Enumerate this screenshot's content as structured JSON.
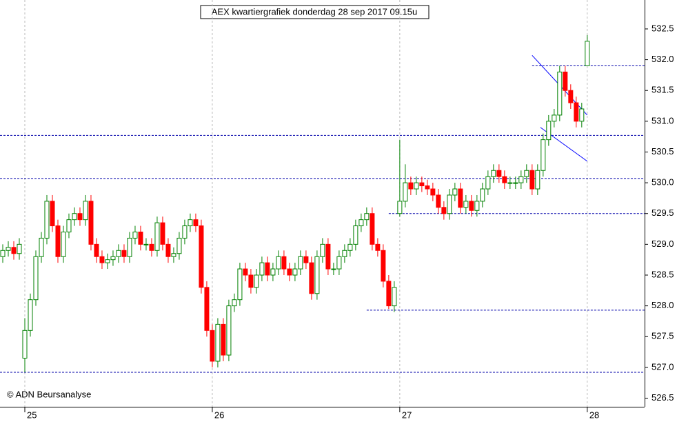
{
  "chart_data": {
    "type": "candlestick",
    "title": "AEX kwartiergrafiek donderdag 28 sep 2017 09.15u",
    "credit": "© ADN Beursanalyse",
    "up_color": "#008000",
    "down_color": "#ff0000",
    "level_color": "#0000aa",
    "trend_color": "#0000ff",
    "open": [
      528.8,
      528.9,
      528.95,
      528.85,
      527.15,
      527.6,
      528.1,
      528.8,
      529.1,
      529.7,
      529.3,
      528.8,
      529.2,
      529.4,
      529.5,
      529.4,
      529.7,
      529.0,
      528.8,
      528.7,
      528.75,
      528.8,
      528.9,
      528.8,
      529.1,
      529.2,
      529.0,
      529.0,
      528.9,
      529.35,
      529.0,
      528.8,
      528.85,
      529.1,
      529.3,
      529.4,
      529.3,
      528.3,
      527.6,
      527.1,
      527.7,
      527.2,
      528.0,
      528.1,
      528.6,
      528.5,
      528.3,
      528.5,
      528.7,
      528.5,
      528.6,
      528.8,
      528.6,
      528.5,
      528.6,
      528.8,
      528.7,
      528.2,
      528.8,
      529.0,
      528.6,
      528.6,
      528.8,
      528.9,
      529.0,
      529.3,
      529.4,
      529.5,
      529.0,
      528.9,
      528.4,
      528.0,
      529.5,
      529.7,
      530.0,
      529.9,
      530.0,
      529.95,
      529.9,
      529.8,
      529.6,
      529.5,
      529.8,
      529.9,
      529.6,
      529.7,
      529.55,
      529.7,
      529.9,
      530.1,
      530.2,
      530.1,
      530.0,
      530.0,
      530.0,
      530.1,
      530.2,
      529.9,
      530.2,
      530.7,
      531.0,
      531.1,
      531.8,
      531.5,
      531.3,
      531.0,
      531.9
    ],
    "high": [
      529.0,
      529.05,
      529.05,
      529.1,
      527.8,
      528.2,
      528.9,
      529.2,
      529.8,
      529.8,
      529.4,
      529.3,
      529.5,
      529.6,
      529.6,
      529.8,
      529.8,
      529.1,
      528.9,
      528.85,
      528.9,
      529.0,
      529.0,
      529.2,
      529.3,
      529.3,
      529.1,
      529.1,
      529.45,
      529.45,
      529.1,
      528.95,
      529.2,
      529.4,
      529.5,
      529.5,
      529.4,
      528.4,
      527.7,
      527.8,
      527.8,
      528.1,
      528.2,
      528.7,
      528.7,
      528.6,
      528.6,
      528.8,
      528.8,
      528.7,
      528.9,
      528.9,
      528.7,
      528.7,
      528.9,
      528.9,
      528.8,
      528.9,
      529.1,
      529.1,
      528.7,
      528.9,
      529.0,
      529.1,
      529.4,
      529.5,
      529.6,
      529.6,
      529.1,
      529.0,
      528.5,
      528.4,
      530.7,
      530.3,
      530.1,
      530.1,
      530.1,
      530.05,
      530.0,
      529.9,
      529.7,
      529.9,
      530.0,
      530.0,
      529.8,
      529.8,
      529.8,
      530.0,
      530.2,
      530.3,
      530.3,
      530.2,
      530.1,
      530.1,
      530.2,
      530.3,
      530.3,
      530.3,
      530.8,
      531.1,
      531.2,
      531.9,
      531.9,
      531.6,
      531.4,
      531.3,
      532.4
    ],
    "low": [
      528.7,
      528.8,
      528.75,
      528.75,
      526.92,
      527.5,
      528.0,
      528.7,
      529.0,
      529.2,
      528.7,
      528.7,
      529.1,
      529.3,
      529.3,
      529.3,
      528.9,
      528.7,
      528.6,
      528.6,
      528.65,
      528.7,
      528.7,
      528.7,
      529.0,
      528.9,
      528.9,
      528.8,
      528.8,
      528.9,
      528.7,
      528.7,
      528.75,
      529.0,
      529.2,
      529.2,
      528.2,
      527.5,
      527.0,
      527.0,
      527.1,
      527.1,
      527.9,
      528.0,
      528.4,
      528.2,
      528.2,
      528.4,
      528.4,
      528.4,
      528.5,
      528.5,
      528.4,
      528.4,
      528.5,
      528.6,
      528.1,
      528.1,
      528.7,
      528.5,
      528.5,
      528.5,
      528.7,
      528.8,
      528.9,
      529.2,
      529.3,
      528.9,
      528.8,
      528.3,
      527.95,
      527.9,
      529.45,
      529.6,
      529.8,
      529.8,
      529.85,
      529.8,
      529.7,
      529.5,
      529.4,
      529.4,
      529.7,
      529.5,
      529.5,
      529.45,
      529.45,
      529.6,
      529.8,
      530.0,
      530.0,
      529.9,
      529.9,
      529.9,
      529.9,
      530.0,
      529.8,
      529.8,
      530.1,
      530.6,
      530.9,
      531.0,
      531.4,
      531.2,
      530.9,
      530.9,
      531.9
    ],
    "close": [
      528.9,
      528.95,
      528.85,
      529.0,
      527.6,
      528.1,
      528.8,
      529.1,
      529.7,
      529.3,
      528.8,
      529.2,
      529.4,
      529.5,
      529.4,
      529.7,
      529.0,
      528.8,
      528.7,
      528.75,
      528.8,
      528.9,
      528.8,
      529.1,
      529.2,
      529.0,
      529.0,
      528.9,
      529.35,
      529.0,
      528.8,
      528.85,
      529.1,
      529.3,
      529.4,
      529.3,
      528.3,
      527.6,
      527.1,
      527.7,
      527.2,
      528.0,
      528.1,
      528.6,
      528.5,
      528.3,
      528.5,
      528.7,
      528.5,
      528.6,
      528.8,
      528.6,
      528.5,
      528.6,
      528.8,
      528.7,
      528.2,
      528.8,
      529.0,
      528.6,
      528.6,
      528.8,
      528.9,
      529.0,
      529.3,
      529.4,
      529.5,
      529.0,
      528.9,
      528.4,
      528.0,
      528.3,
      529.7,
      530.0,
      529.9,
      530.0,
      529.95,
      529.9,
      529.8,
      529.6,
      529.5,
      529.8,
      529.9,
      529.6,
      529.7,
      529.55,
      529.7,
      529.9,
      530.1,
      530.2,
      530.1,
      530.0,
      530.0,
      530.0,
      530.1,
      530.2,
      529.9,
      530.2,
      530.7,
      531.0,
      531.1,
      531.8,
      531.5,
      531.3,
      531.0,
      531.2,
      532.3
    ],
    "levels": [
      {
        "value": 531.9,
        "from": 96
      },
      {
        "value": 530.77,
        "from": -0.5
      },
      {
        "value": 530.07,
        "from": -0.5
      },
      {
        "value": 529.5,
        "from": 70
      },
      {
        "value": 527.93,
        "from": 66
      },
      {
        "value": 526.92,
        "from": -0.5
      }
    ],
    "trendlines": [
      {
        "x": [
          96,
          106
        ],
        "y": [
          532.07,
          531.1
        ]
      },
      {
        "x": [
          97.5,
          106
        ],
        "y": [
          530.9,
          530.35
        ]
      }
    ],
    "xlim": [
      -0.5,
      116.4
    ],
    "ylim": [
      526.36,
      532.97
    ],
    "xticks": [
      {
        "value": 4,
        "label": "25"
      },
      {
        "value": 38,
        "label": "26"
      },
      {
        "value": 72,
        "label": "27"
      },
      {
        "value": 106,
        "label": "28"
      }
    ],
    "yticks": [
      {
        "value": 526.5,
        "label": "526.5"
      },
      {
        "value": 527,
        "label": "527.0"
      },
      527.5,
      {
        "value": 528,
        "label": "528.0"
      },
      528.5,
      {
        "value": 529,
        "label": "529.0"
      },
      529.5,
      {
        "value": 530,
        "label": "530.0"
      },
      530.5,
      {
        "value": 531,
        "label": "531.0"
      },
      531.5,
      {
        "value": 532,
        "label": "532.0"
      },
      532.5
    ]
  }
}
